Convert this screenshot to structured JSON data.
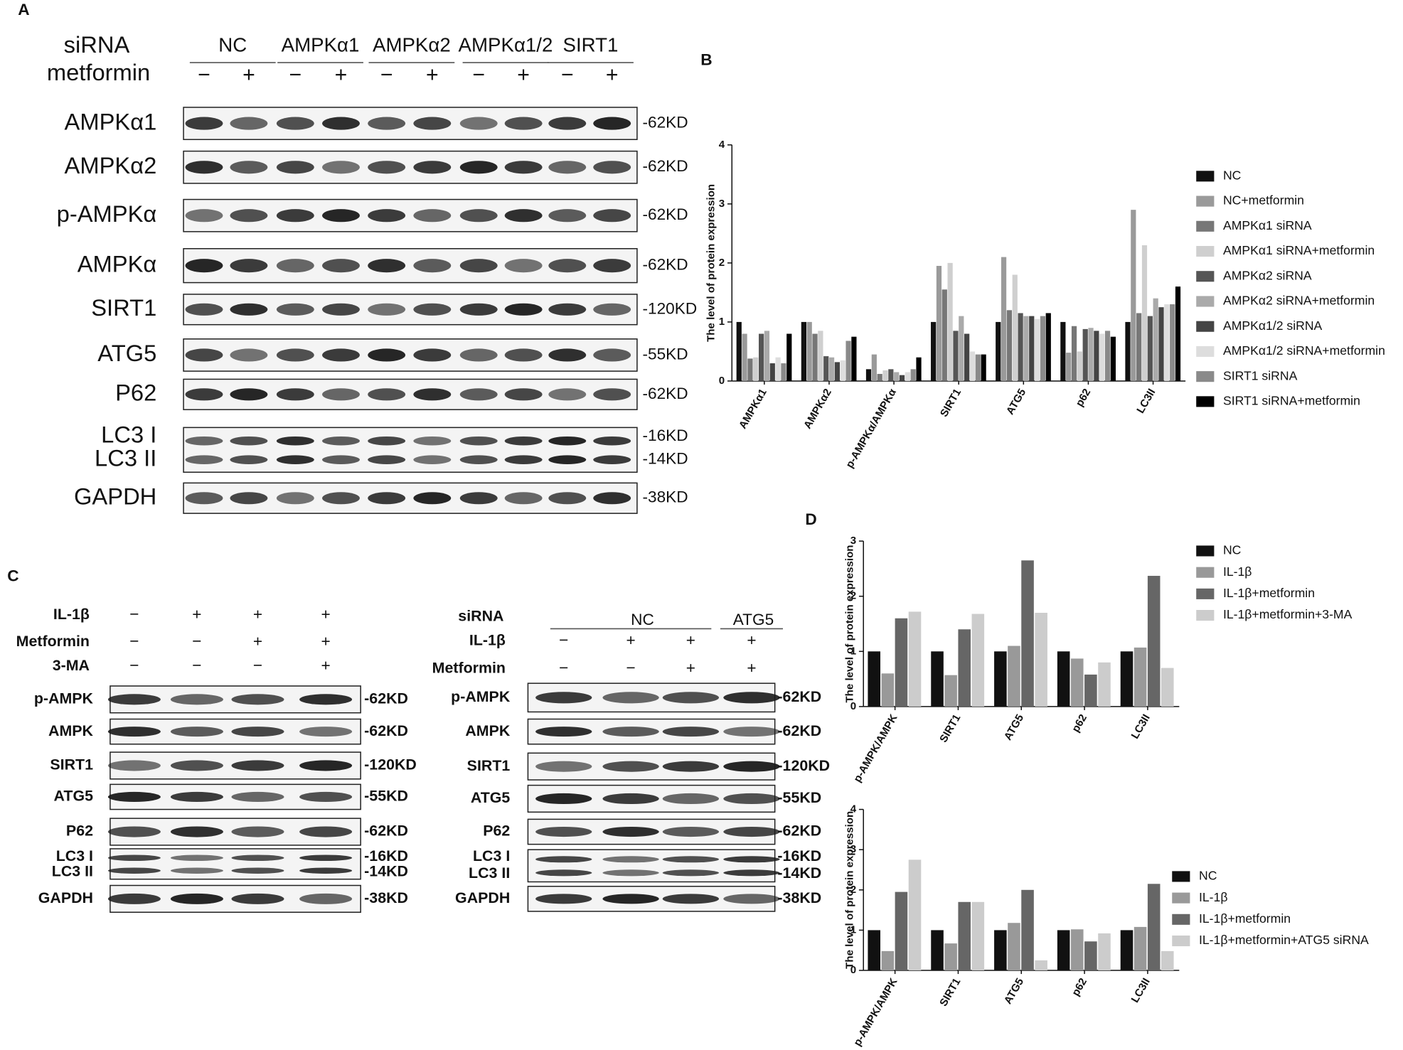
{
  "panel_labels": [
    "A",
    "B",
    "C",
    "D"
  ],
  "blot_a": {
    "group_label": "siRNA",
    "treatment_label": "metformin",
    "groups": [
      "NC",
      "AMPKα1",
      "AMPKα2",
      "AMPKα1/2",
      "SIRT1"
    ],
    "signs": [
      "−",
      "+",
      "−",
      "+",
      "−",
      "+",
      "−",
      "+",
      "−",
      "+"
    ],
    "rows": [
      {
        "label": "AMPKα1",
        "size": "-62KD"
      },
      {
        "label": "AMPKα2",
        "size": "-62KD"
      },
      {
        "label": "p-AMPKα",
        "size": "-62KD"
      },
      {
        "label": "AMPKα",
        "size": "-62KD"
      },
      {
        "label": "SIRT1",
        "size": "-120KD"
      },
      {
        "label": "ATG5",
        "size": "-55KD"
      },
      {
        "label": "P62",
        "size": "-62KD"
      },
      {
        "label": [
          "LC3 I",
          "LC3 II"
        ],
        "size": [
          "-16KD",
          "-14KD"
        ]
      },
      {
        "label": "GAPDH",
        "size": "-38KD"
      }
    ]
  },
  "blot_c_left": {
    "treatments": [
      {
        "label": "IL-1β",
        "signs": [
          "−",
          "+",
          "+",
          "+"
        ]
      },
      {
        "label": "Metformin",
        "signs": [
          "−",
          "−",
          "+",
          "+"
        ]
      },
      {
        "label": "3-MA",
        "signs": [
          "−",
          "−",
          "−",
          "+"
        ]
      }
    ],
    "rows": [
      {
        "label": "p-AMPK",
        "size": "-62KD"
      },
      {
        "label": "AMPK",
        "size": "-62KD"
      },
      {
        "label": "SIRT1",
        "size": "-120KD"
      },
      {
        "label": "ATG5",
        "size": "-55KD"
      },
      {
        "label": "P62",
        "size": "-62KD"
      },
      {
        "label": [
          "LC3 I",
          "LC3 II"
        ],
        "size": [
          "-16KD",
          "-14KD"
        ]
      },
      {
        "label": "GAPDH",
        "size": "-38KD"
      }
    ]
  },
  "blot_c_right": {
    "group_label": "siRNA",
    "groups": [
      "NC",
      "ATG5"
    ],
    "treatments": [
      {
        "label": "IL-1β",
        "signs": [
          "−",
          "+",
          "+",
          "+"
        ]
      },
      {
        "label": "Metformin",
        "signs": [
          "−",
          "−",
          "+",
          "+"
        ]
      }
    ],
    "rows": [
      {
        "label": "p-AMPK",
        "size": "-62KD"
      },
      {
        "label": "AMPK",
        "size": "-62KD"
      },
      {
        "label": "SIRT1",
        "size": "-120KD"
      },
      {
        "label": "ATG5",
        "size": "-55KD"
      },
      {
        "label": "P62",
        "size": "-62KD"
      },
      {
        "label": [
          "LC3 I",
          "LC3 II"
        ],
        "size": [
          "-16KD",
          "-14KD"
        ]
      },
      {
        "label": "GAPDH",
        "size": "-38KD"
      }
    ]
  },
  "chart_data": [
    {
      "type": "bar",
      "y_label": "The level of protein expression",
      "categories": [
        "AMPKα1",
        "AMPKα2",
        "p-AMPKα/AMPKα",
        "SIRT1",
        "ATG5",
        "p62",
        "LC3II"
      ],
      "ylim": [
        0,
        4
      ],
      "yticks": [
        0,
        1,
        2,
        3,
        4
      ],
      "series": [
        {
          "name": "NC",
          "color": "#111111",
          "values": [
            1.0,
            1.0,
            0.2,
            1.0,
            1.0,
            1.0,
            1.0
          ]
        },
        {
          "name": "NC+metformin",
          "color": "#9a9a9a",
          "values": [
            0.8,
            1.0,
            0.45,
            1.95,
            2.1,
            0.48,
            2.9
          ]
        },
        {
          "name": "AMPKα1 siRNA",
          "color": "#777777",
          "values": [
            0.38,
            0.8,
            0.12,
            1.55,
            1.2,
            0.93,
            1.15
          ]
        },
        {
          "name": "AMPKα1 siRNA+metformin",
          "color": "#cfcfcf",
          "values": [
            0.4,
            0.85,
            0.18,
            2.0,
            1.8,
            0.5,
            2.3
          ]
        },
        {
          "name": "AMPKα2 siRNA",
          "color": "#555555",
          "values": [
            0.8,
            0.42,
            0.2,
            0.85,
            1.15,
            0.88,
            1.1
          ]
        },
        {
          "name": "AMPKα2 siRNA+metformin",
          "color": "#aaaaaa",
          "values": [
            0.85,
            0.4,
            0.15,
            1.1,
            1.1,
            0.9,
            1.4
          ]
        },
        {
          "name": "AMPKα1/2 siRNA",
          "color": "#444444",
          "values": [
            0.3,
            0.32,
            0.1,
            0.8,
            1.1,
            0.85,
            1.25
          ]
        },
        {
          "name": "AMPKα1/2 siRNA+metformin",
          "color": "#dddddd",
          "values": [
            0.4,
            0.35,
            0.15,
            0.5,
            1.05,
            0.8,
            1.3
          ]
        },
        {
          "name": "SIRT1 siRNA",
          "color": "#8a8a8a",
          "values": [
            0.3,
            0.68,
            0.2,
            0.45,
            1.1,
            0.85,
            1.3
          ]
        },
        {
          "name": "SIRT1 siRNA+metformin",
          "color": "#000000",
          "values": [
            0.8,
            0.75,
            0.4,
            0.45,
            1.15,
            0.75,
            1.6
          ]
        }
      ]
    },
    {
      "type": "bar",
      "y_label": "The level of protein  expression",
      "categories": [
        "p-AMPK/AMPK",
        "SIRT1",
        "ATG5",
        "p62",
        "LC3II"
      ],
      "ylim": [
        0,
        3
      ],
      "yticks": [
        0,
        1,
        2,
        3
      ],
      "series": [
        {
          "name": "NC",
          "color": "#111111",
          "values": [
            1,
            1,
            1,
            1,
            1
          ]
        },
        {
          "name": "IL-1β",
          "color": "#999999",
          "values": [
            0.6,
            0.57,
            1.1,
            0.87,
            1.07
          ]
        },
        {
          "name": "IL-1β+metformin",
          "color": "#666666",
          "values": [
            1.6,
            1.4,
            2.65,
            0.58,
            2.37
          ]
        },
        {
          "name": "IL-1β+metformin+3-MA",
          "color": "#cccccc",
          "values": [
            1.72,
            1.68,
            1.7,
            0.8,
            0.7
          ]
        }
      ]
    },
    {
      "type": "bar",
      "y_label": "The level of protein  expression",
      "categories": [
        "p-AMPK/AMPK",
        "SIRT1",
        "ATG5",
        "p62",
        "LC3II"
      ],
      "ylim": [
        0,
        4
      ],
      "yticks": [
        0,
        1,
        2,
        3,
        4
      ],
      "series": [
        {
          "name": "NC",
          "color": "#111111",
          "values": [
            1,
            1,
            1,
            1,
            1
          ]
        },
        {
          "name": "IL-1β",
          "color": "#999999",
          "values": [
            0.48,
            0.67,
            1.18,
            1.02,
            1.08
          ]
        },
        {
          "name": "IL-1β+metformin",
          "color": "#666666",
          "values": [
            1.95,
            1.7,
            2.0,
            0.72,
            2.15
          ]
        },
        {
          "name": "IL-1β+metformin+ATG5 siRNA",
          "color": "#cccccc",
          "values": [
            2.75,
            1.7,
            0.25,
            0.92,
            0.48
          ]
        }
      ]
    }
  ]
}
